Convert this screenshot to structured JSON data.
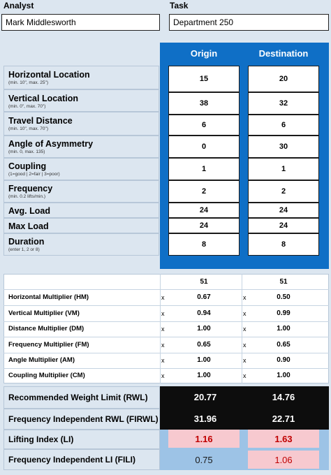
{
  "header": {
    "analyst_label": "Analyst",
    "analyst_value": "Mark Middlesworth",
    "task_label": "Task",
    "task_value": "Department 250"
  },
  "columns": {
    "origin": "Origin",
    "destination": "Destination"
  },
  "inputs": [
    {
      "title": "Horizontal Location",
      "sub": "(min. 10\", max. 25\")",
      "origin": "15",
      "destination": "20"
    },
    {
      "title": "Vertical Location",
      "sub": "(min. 0\", max. 70\")",
      "origin": "38",
      "destination": "32"
    },
    {
      "title": "Travel Distance",
      "sub": "(min. 10\", max. 70\")",
      "origin": "6",
      "destination": "6"
    },
    {
      "title": "Angle of Asymmetry",
      "sub": "(min. 0, max. 135)",
      "origin": "0",
      "destination": "30"
    },
    {
      "title": "Coupling",
      "sub": "(1=good | 2=fair | 3=poor)",
      "origin": "1",
      "destination": "1"
    },
    {
      "title": "Frequency",
      "sub": "(min. 0.2 lifts/min.)",
      "origin": "2",
      "destination": "2"
    },
    {
      "title": "Avg. Load",
      "sub": "",
      "origin": "24",
      "destination": "24"
    },
    {
      "title": "Max Load",
      "sub": "",
      "origin": "24",
      "destination": "24"
    },
    {
      "title": "Duration",
      "sub": "(enter 1, 2 or 8)",
      "origin": "8",
      "destination": "8"
    }
  ],
  "multipliers": {
    "lc": {
      "origin": "51",
      "destination": "51"
    },
    "x_sign": "x",
    "rows": [
      {
        "label": "Horizontal Multiplier (HM)",
        "origin": "0.67",
        "destination": "0.50"
      },
      {
        "label": "Vertical Multiplier (VM)",
        "origin": "0.94",
        "destination": "0.99"
      },
      {
        "label": "Distance Multiplier (DM)",
        "origin": "1.00",
        "destination": "1.00"
      },
      {
        "label": "Frequency Multiplier (FM)",
        "origin": "0.65",
        "destination": "0.65"
      },
      {
        "label": "Angle Multiplier (AM)",
        "origin": "1.00",
        "destination": "0.90"
      },
      {
        "label": "Coupling Multiplier (CM)",
        "origin": "1.00",
        "destination": "1.00"
      }
    ]
  },
  "results": [
    {
      "label": "Recommended Weight Limit (RWL)",
      "origin": "20.77",
      "destination": "14.76"
    },
    {
      "label": "Frequency Independent RWL (FIRWL)",
      "origin": "31.96",
      "destination": "22.71"
    },
    {
      "label": "Lifting Index (LI)",
      "origin": "1.16",
      "destination": "1.63"
    },
    {
      "label": "Frequency Independent LI (FILI)",
      "origin": "0.75",
      "destination": "1.06"
    }
  ],
  "colors": {
    "page_bg": "#dce6f0",
    "panel_blue": "#0f6fc6",
    "dark_cell": "#0d0d0d",
    "alert_pink": "#f7c9cf",
    "alert_text": "#c00000",
    "mid_blue": "#9dc3e6"
  }
}
